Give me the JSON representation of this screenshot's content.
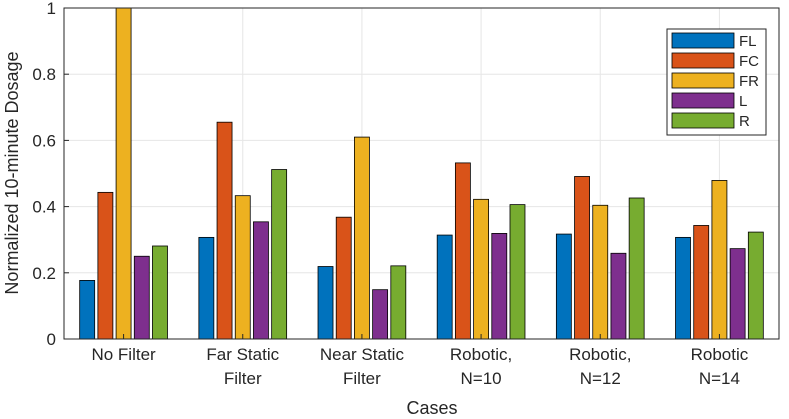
{
  "chart_data": {
    "type": "bar",
    "title": "",
    "xlabel": "Cases",
    "ylabel": "Normalized 10-minute Dosage",
    "ylim": [
      0,
      1
    ],
    "yticks": [
      "0",
      "0.2",
      "0.4",
      "0.6",
      "0.8",
      "1"
    ],
    "grid": true,
    "legend_position": "top-right",
    "categories": [
      [
        "No Filter"
      ],
      [
        "Far Static",
        "Filter"
      ],
      [
        "Near Static",
        "Filter"
      ],
      [
        "Robotic,",
        "N=10"
      ],
      [
        "Robotic,",
        "N=12"
      ],
      [
        "Robotic",
        "N=14"
      ]
    ],
    "series": [
      {
        "name": "FL",
        "color": "#0072BD",
        "values": [
          0.177,
          0.307,
          0.219,
          0.314,
          0.317,
          0.307
        ]
      },
      {
        "name": "FC",
        "color": "#D95319",
        "values": [
          0.443,
          0.655,
          0.368,
          0.532,
          0.491,
          0.343
        ]
      },
      {
        "name": "FR",
        "color": "#EDB120",
        "values": [
          1.0,
          0.433,
          0.61,
          0.422,
          0.404,
          0.479
        ]
      },
      {
        "name": "L",
        "color": "#7E2F8E",
        "values": [
          0.25,
          0.354,
          0.149,
          0.319,
          0.259,
          0.273
        ]
      },
      {
        "name": "R",
        "color": "#77AC30",
        "values": [
          0.281,
          0.512,
          0.221,
          0.406,
          0.426,
          0.323
        ]
      }
    ]
  }
}
